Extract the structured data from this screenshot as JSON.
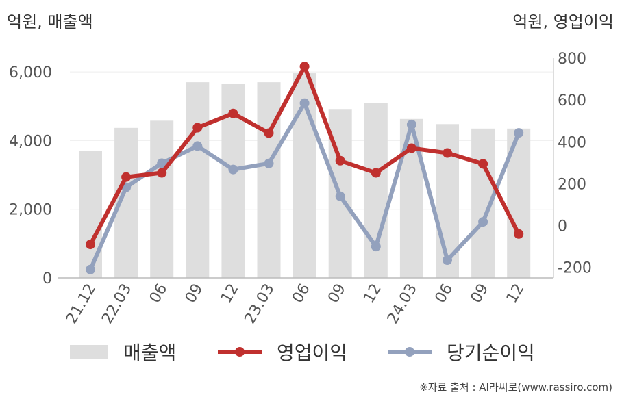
{
  "left_unit_label": "억원, 매출액",
  "right_unit_label": "억원, 영업이익",
  "source": "※자료 출처 : AI라씨로(www.rassiro.com)",
  "colors": {
    "revenue": "#dedede",
    "operating_profit": "#c0302e",
    "net_income": "#93a1bd",
    "axis": "#bbbbbb",
    "grid": "#eeeeee"
  },
  "chart_data": {
    "type": "bar",
    "categories": [
      "21.12",
      "22.03",
      "06",
      "09",
      "12",
      "23.03",
      "06",
      "09",
      "12",
      "24.03",
      "06",
      "09",
      "12"
    ],
    "series": [
      {
        "name": "매출액",
        "type": "bar",
        "axis": "left",
        "values": [
          3700,
          4370,
          4580,
          5700,
          5650,
          5700,
          5960,
          4920,
          5100,
          4630,
          4480,
          4350,
          4350
        ]
      },
      {
        "name": "영업이익",
        "type": "line",
        "axis": "right",
        "values": [
          -90,
          232,
          252,
          468,
          536,
          442,
          760,
          310,
          252,
          370,
          347,
          295,
          -40
        ]
      },
      {
        "name": "당기순이익",
        "type": "line",
        "axis": "right",
        "values": [
          -210,
          183,
          298,
          380,
          268,
          297,
          585,
          140,
          -100,
          483,
          -165,
          18,
          443
        ]
      }
    ],
    "left_axis": {
      "ylim": [
        0,
        6400
      ],
      "ticks": [
        0,
        2000,
        4000,
        6000
      ],
      "tick_labels": [
        "0",
        "2,000",
        "4,000",
        "6,000"
      ]
    },
    "right_axis": {
      "ylim": [
        -250,
        800
      ],
      "ticks": [
        -200,
        0,
        200,
        400,
        600,
        800
      ],
      "tick_labels": [
        "-200",
        "0",
        "200",
        "400",
        "600",
        "800"
      ]
    },
    "grid": true,
    "legend_position": "bottom"
  }
}
